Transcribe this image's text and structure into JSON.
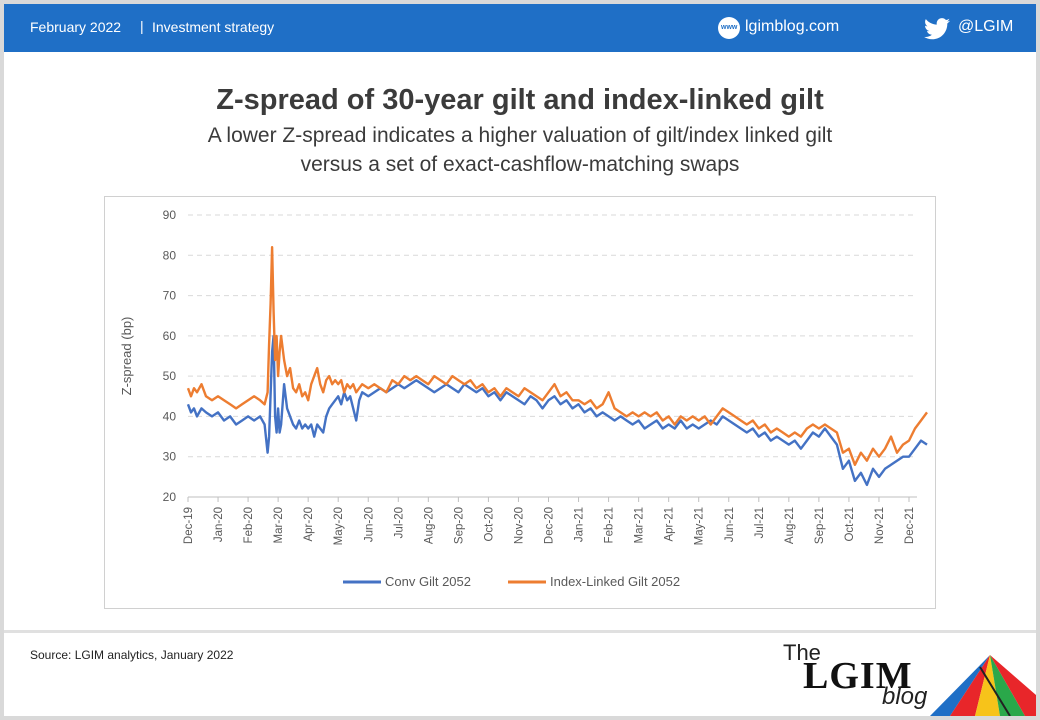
{
  "header": {
    "date": "February 2022",
    "separator": "|",
    "section": "Investment strategy",
    "website_icon": "www-globe-icon",
    "website": "lgimblog.com",
    "twitter_icon": "twitter-bird-icon",
    "twitter": "@LGIM"
  },
  "title": "Z-spread of 30-year gilt and index-linked gilt",
  "subtitle_line1": "A lower Z-spread indicates a higher valuation of gilt/index linked gilt",
  "subtitle_line2": "versus a set of exact-cashflow-matching swaps",
  "footer": {
    "source": "Source: LGIM analytics, January 2022",
    "logo_the": "The",
    "logo_main": "LGIM",
    "logo_blog": "blog"
  },
  "colors": {
    "header_bg": "#1f6fc6",
    "conv": "#4472c4",
    "il": "#ed7d31",
    "grid": "#d9d9d9"
  },
  "chart_data": {
    "type": "line",
    "ylabel": "Z-spread (bp)",
    "ylim": [
      20,
      90
    ],
    "yticks": [
      20,
      30,
      40,
      50,
      60,
      70,
      80,
      90
    ],
    "x_tick_labels": [
      "Dec-19",
      "Jan-20",
      "Feb-20",
      "Mar-20",
      "Apr-20",
      "May-20",
      "Jun-20",
      "Jul-20",
      "Aug-20",
      "Sep-20",
      "Oct-20",
      "Nov-20",
      "Dec-20",
      "Jan-21",
      "Feb-21",
      "Mar-21",
      "Apr-21",
      "May-21",
      "Jun-21",
      "Jul-21",
      "Aug-21",
      "Sep-21",
      "Oct-21",
      "Nov-21",
      "Dec-21"
    ],
    "grid": "horizontal dashed",
    "legend_position": "bottom",
    "series": [
      {
        "name": "Conv Gilt 2052",
        "color": "#4472c4",
        "points": [
          [
            0,
            43
          ],
          [
            0.1,
            41
          ],
          [
            0.2,
            42
          ],
          [
            0.3,
            40
          ],
          [
            0.45,
            42
          ],
          [
            0.6,
            41
          ],
          [
            0.8,
            40
          ],
          [
            1.0,
            41
          ],
          [
            1.2,
            39
          ],
          [
            1.4,
            40
          ],
          [
            1.6,
            38
          ],
          [
            1.8,
            39
          ],
          [
            2.0,
            40
          ],
          [
            2.2,
            39
          ],
          [
            2.4,
            40
          ],
          [
            2.55,
            38
          ],
          [
            2.65,
            31
          ],
          [
            2.7,
            35
          ],
          [
            2.8,
            56
          ],
          [
            2.85,
            60
          ],
          [
            2.9,
            40
          ],
          [
            2.95,
            36
          ],
          [
            3.0,
            42
          ],
          [
            3.05,
            36
          ],
          [
            3.1,
            38
          ],
          [
            3.2,
            48
          ],
          [
            3.3,
            42
          ],
          [
            3.4,
            40
          ],
          [
            3.5,
            38
          ],
          [
            3.6,
            37
          ],
          [
            3.7,
            39
          ],
          [
            3.8,
            37
          ],
          [
            3.9,
            38
          ],
          [
            4.0,
            37
          ],
          [
            4.1,
            38
          ],
          [
            4.2,
            35
          ],
          [
            4.3,
            38
          ],
          [
            4.4,
            37
          ],
          [
            4.5,
            36
          ],
          [
            4.6,
            40
          ],
          [
            4.7,
            42
          ],
          [
            4.8,
            43
          ],
          [
            4.9,
            44
          ],
          [
            5.0,
            45
          ],
          [
            5.1,
            43
          ],
          [
            5.2,
            46
          ],
          [
            5.3,
            44
          ],
          [
            5.4,
            45
          ],
          [
            5.5,
            42
          ],
          [
            5.6,
            39
          ],
          [
            5.7,
            44
          ],
          [
            5.8,
            46
          ],
          [
            6.0,
            45
          ],
          [
            6.2,
            46
          ],
          [
            6.4,
            47
          ],
          [
            6.6,
            46
          ],
          [
            6.8,
            47
          ],
          [
            7.0,
            48
          ],
          [
            7.2,
            47
          ],
          [
            7.4,
            48
          ],
          [
            7.6,
            49
          ],
          [
            7.8,
            48
          ],
          [
            8.0,
            47
          ],
          [
            8.2,
            46
          ],
          [
            8.4,
            47
          ],
          [
            8.6,
            48
          ],
          [
            8.8,
            47
          ],
          [
            9.0,
            46
          ],
          [
            9.2,
            48
          ],
          [
            9.4,
            47
          ],
          [
            9.6,
            46
          ],
          [
            9.8,
            47
          ],
          [
            10.0,
            45
          ],
          [
            10.2,
            46
          ],
          [
            10.4,
            44
          ],
          [
            10.6,
            46
          ],
          [
            10.8,
            45
          ],
          [
            11.0,
            44
          ],
          [
            11.2,
            43
          ],
          [
            11.4,
            45
          ],
          [
            11.6,
            44
          ],
          [
            11.8,
            42
          ],
          [
            12.0,
            44
          ],
          [
            12.2,
            45
          ],
          [
            12.4,
            43
          ],
          [
            12.6,
            44
          ],
          [
            12.8,
            42
          ],
          [
            13.0,
            43
          ],
          [
            13.2,
            41
          ],
          [
            13.4,
            42
          ],
          [
            13.6,
            40
          ],
          [
            13.8,
            41
          ],
          [
            14.0,
            40
          ],
          [
            14.2,
            39
          ],
          [
            14.4,
            40
          ],
          [
            14.6,
            39
          ],
          [
            14.8,
            38
          ],
          [
            15.0,
            39
          ],
          [
            15.2,
            37
          ],
          [
            15.4,
            38
          ],
          [
            15.6,
            39
          ],
          [
            15.8,
            37
          ],
          [
            16.0,
            38
          ],
          [
            16.2,
            37
          ],
          [
            16.4,
            39
          ],
          [
            16.6,
            37
          ],
          [
            16.8,
            38
          ],
          [
            17.0,
            37
          ],
          [
            17.2,
            38
          ],
          [
            17.4,
            39
          ],
          [
            17.6,
            38
          ],
          [
            17.8,
            40
          ],
          [
            18.0,
            39
          ],
          [
            18.2,
            38
          ],
          [
            18.4,
            37
          ],
          [
            18.6,
            36
          ],
          [
            18.8,
            37
          ],
          [
            19.0,
            35
          ],
          [
            19.2,
            36
          ],
          [
            19.4,
            34
          ],
          [
            19.6,
            35
          ],
          [
            19.8,
            34
          ],
          [
            20.0,
            33
          ],
          [
            20.2,
            34
          ],
          [
            20.4,
            32
          ],
          [
            20.6,
            34
          ],
          [
            20.8,
            36
          ],
          [
            21.0,
            35
          ],
          [
            21.2,
            37
          ],
          [
            21.4,
            35
          ],
          [
            21.6,
            33
          ],
          [
            21.8,
            27
          ],
          [
            22.0,
            29
          ],
          [
            22.2,
            24
          ],
          [
            22.4,
            26
          ],
          [
            22.6,
            23
          ],
          [
            22.8,
            27
          ],
          [
            23.0,
            25
          ],
          [
            23.2,
            27
          ],
          [
            23.4,
            28
          ],
          [
            23.6,
            29
          ],
          [
            23.8,
            30
          ],
          [
            24.0,
            30
          ],
          [
            24.2,
            32
          ],
          [
            24.4,
            34
          ],
          [
            24.6,
            33
          ]
        ]
      },
      {
        "name": "Index-Linked Gilt 2052",
        "color": "#ed7d31",
        "points": [
          [
            0,
            47
          ],
          [
            0.1,
            45
          ],
          [
            0.2,
            47
          ],
          [
            0.3,
            46
          ],
          [
            0.45,
            48
          ],
          [
            0.6,
            45
          ],
          [
            0.8,
            44
          ],
          [
            1.0,
            45
          ],
          [
            1.2,
            44
          ],
          [
            1.4,
            43
          ],
          [
            1.6,
            42
          ],
          [
            1.8,
            43
          ],
          [
            2.0,
            44
          ],
          [
            2.2,
            45
          ],
          [
            2.4,
            44
          ],
          [
            2.55,
            43
          ],
          [
            2.65,
            46
          ],
          [
            2.7,
            58
          ],
          [
            2.75,
            68
          ],
          [
            2.8,
            82
          ],
          [
            2.85,
            66
          ],
          [
            2.9,
            54
          ],
          [
            2.95,
            60
          ],
          [
            3.0,
            50
          ],
          [
            3.05,
            56
          ],
          [
            3.1,
            60
          ],
          [
            3.2,
            54
          ],
          [
            3.3,
            50
          ],
          [
            3.4,
            52
          ],
          [
            3.5,
            47
          ],
          [
            3.6,
            46
          ],
          [
            3.7,
            48
          ],
          [
            3.8,
            45
          ],
          [
            3.9,
            46
          ],
          [
            4.0,
            44
          ],
          [
            4.1,
            48
          ],
          [
            4.2,
            50
          ],
          [
            4.3,
            52
          ],
          [
            4.4,
            48
          ],
          [
            4.5,
            46
          ],
          [
            4.6,
            49
          ],
          [
            4.7,
            50
          ],
          [
            4.8,
            48
          ],
          [
            4.9,
            49
          ],
          [
            5.0,
            48
          ],
          [
            5.1,
            49
          ],
          [
            5.2,
            46
          ],
          [
            5.3,
            48
          ],
          [
            5.4,
            47
          ],
          [
            5.5,
            48
          ],
          [
            5.6,
            46
          ],
          [
            5.7,
            47
          ],
          [
            5.8,
            48
          ],
          [
            6.0,
            47
          ],
          [
            6.2,
            48
          ],
          [
            6.4,
            47
          ],
          [
            6.6,
            46
          ],
          [
            6.8,
            49
          ],
          [
            7.0,
            48
          ],
          [
            7.2,
            50
          ],
          [
            7.4,
            49
          ],
          [
            7.6,
            50
          ],
          [
            7.8,
            49
          ],
          [
            8.0,
            48
          ],
          [
            8.2,
            50
          ],
          [
            8.4,
            49
          ],
          [
            8.6,
            48
          ],
          [
            8.8,
            50
          ],
          [
            9.0,
            49
          ],
          [
            9.2,
            48
          ],
          [
            9.4,
            49
          ],
          [
            9.6,
            47
          ],
          [
            9.8,
            48
          ],
          [
            10.0,
            46
          ],
          [
            10.2,
            47
          ],
          [
            10.4,
            45
          ],
          [
            10.6,
            47
          ],
          [
            10.8,
            46
          ],
          [
            11.0,
            45
          ],
          [
            11.2,
            47
          ],
          [
            11.4,
            46
          ],
          [
            11.6,
            45
          ],
          [
            11.8,
            44
          ],
          [
            12.0,
            46
          ],
          [
            12.2,
            48
          ],
          [
            12.4,
            45
          ],
          [
            12.6,
            46
          ],
          [
            12.8,
            44
          ],
          [
            13.0,
            44
          ],
          [
            13.2,
            43
          ],
          [
            13.4,
            44
          ],
          [
            13.6,
            42
          ],
          [
            13.8,
            43
          ],
          [
            14.0,
            46
          ],
          [
            14.2,
            42
          ],
          [
            14.4,
            41
          ],
          [
            14.6,
            40
          ],
          [
            14.8,
            41
          ],
          [
            15.0,
            40
          ],
          [
            15.2,
            41
          ],
          [
            15.4,
            40
          ],
          [
            15.6,
            41
          ],
          [
            15.8,
            39
          ],
          [
            16.0,
            40
          ],
          [
            16.2,
            38
          ],
          [
            16.4,
            40
          ],
          [
            16.6,
            39
          ],
          [
            16.8,
            40
          ],
          [
            17.0,
            39
          ],
          [
            17.2,
            40
          ],
          [
            17.4,
            38
          ],
          [
            17.6,
            40
          ],
          [
            17.8,
            42
          ],
          [
            18.0,
            41
          ],
          [
            18.2,
            40
          ],
          [
            18.4,
            39
          ],
          [
            18.6,
            38
          ],
          [
            18.8,
            39
          ],
          [
            19.0,
            37
          ],
          [
            19.2,
            38
          ],
          [
            19.4,
            36
          ],
          [
            19.6,
            37
          ],
          [
            19.8,
            36
          ],
          [
            20.0,
            35
          ],
          [
            20.2,
            36
          ],
          [
            20.4,
            35
          ],
          [
            20.6,
            37
          ],
          [
            20.8,
            38
          ],
          [
            21.0,
            37
          ],
          [
            21.2,
            38
          ],
          [
            21.4,
            37
          ],
          [
            21.6,
            36
          ],
          [
            21.8,
            31
          ],
          [
            22.0,
            32
          ],
          [
            22.2,
            28
          ],
          [
            22.4,
            31
          ],
          [
            22.6,
            29
          ],
          [
            22.8,
            32
          ],
          [
            23.0,
            30
          ],
          [
            23.2,
            32
          ],
          [
            23.4,
            35
          ],
          [
            23.6,
            31
          ],
          [
            23.8,
            33
          ],
          [
            24.0,
            34
          ],
          [
            24.2,
            37
          ],
          [
            24.4,
            39
          ],
          [
            24.6,
            41
          ]
        ]
      }
    ]
  }
}
